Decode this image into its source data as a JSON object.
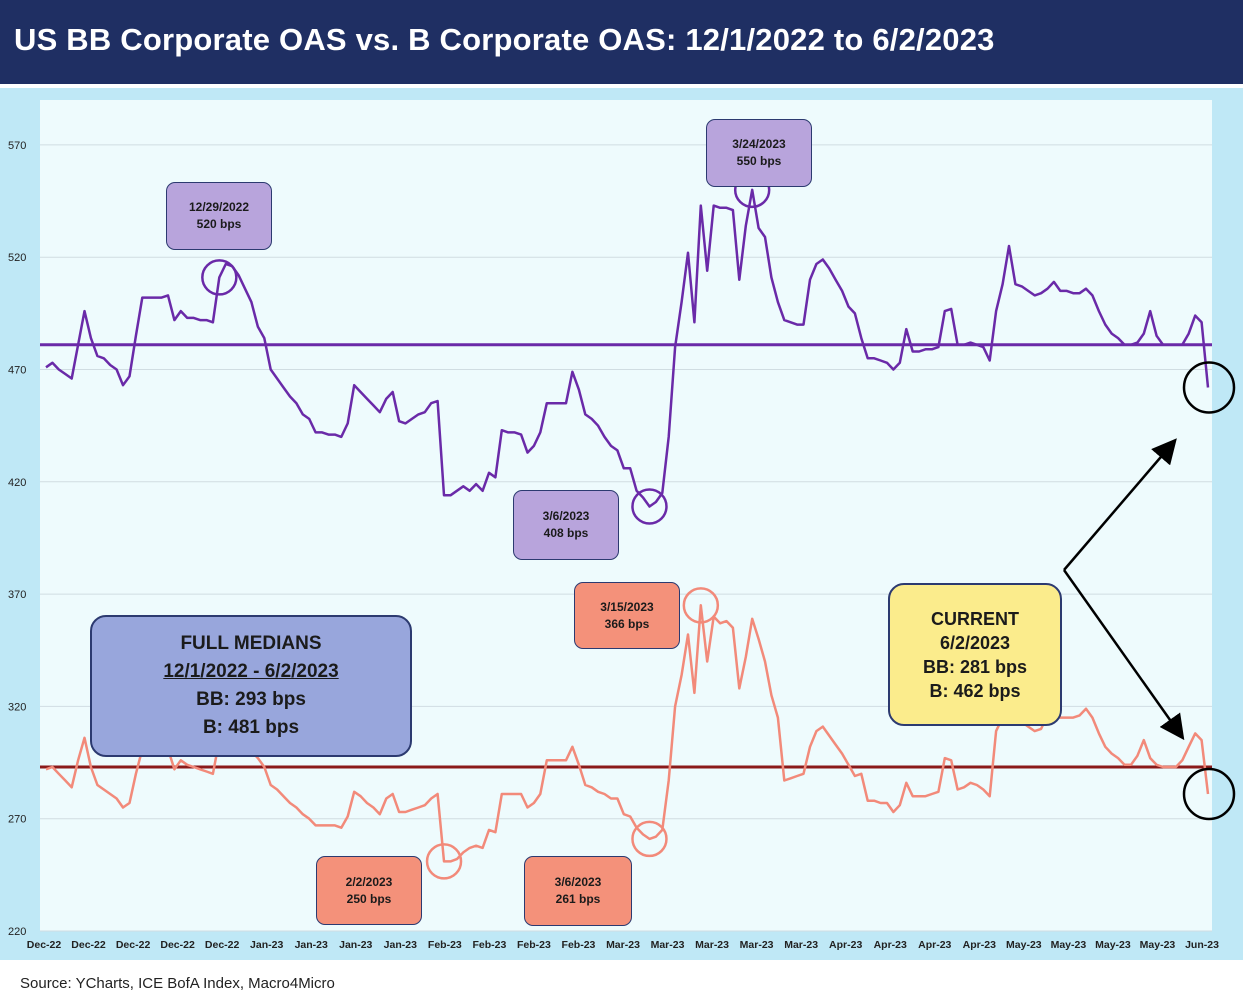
{
  "title": "US BB Corporate OAS vs. B Corporate OAS: 12/1/2022 to 6/2/2023",
  "source": "Source: YCharts, ICE BofA Index, Macro4Micro",
  "chart_data": {
    "type": "line",
    "ylim": [
      220,
      590
    ],
    "yticks": [
      220,
      270,
      320,
      370,
      420,
      470,
      520,
      570
    ],
    "xtick_labels": [
      "Dec-22",
      "Dec-22",
      "Dec-22",
      "Dec-22",
      "Dec-22",
      "Jan-23",
      "Jan-23",
      "Jan-23",
      "Jan-23",
      "Feb-23",
      "Feb-23",
      "Feb-23",
      "Feb-23",
      "Mar-23",
      "Mar-23",
      "Mar-23",
      "Mar-23",
      "Mar-23",
      "Apr-23",
      "Apr-23",
      "Apr-23",
      "Apr-23",
      "May-23",
      "May-23",
      "May-23",
      "May-23",
      "Jun-23"
    ],
    "grid": true,
    "colors": {
      "b_series": "#6a2aa8",
      "bb_series": "#f28a7a",
      "b_median": "#6a2aa8",
      "bb_median": "#8b1a1a",
      "markers_black": "#000000"
    },
    "series": [
      {
        "key": "b",
        "values": [
          471,
          473,
          470,
          468,
          466,
          481,
          496,
          484,
          476,
          475,
          472,
          470,
          463,
          467,
          485,
          502,
          502,
          502,
          502,
          503,
          492,
          496,
          493,
          493,
          492,
          492,
          491,
          511,
          517,
          516,
          512,
          506,
          500,
          489,
          484,
          470,
          466,
          462,
          458,
          455,
          450,
          448,
          442,
          442,
          441,
          441,
          440,
          446,
          463,
          460,
          457,
          454,
          451,
          457,
          460,
          447,
          446,
          448,
          450,
          451,
          455,
          456,
          414,
          414,
          416,
          418,
          416,
          419,
          416,
          424,
          422,
          443,
          442,
          442,
          441,
          433,
          436,
          442,
          455,
          455,
          455,
          455,
          469,
          461,
          450,
          448,
          445,
          440,
          436,
          434,
          426,
          426,
          416,
          413,
          409,
          411,
          415,
          440,
          480,
          500,
          522,
          491,
          543,
          514,
          543,
          542,
          542,
          541,
          510,
          534,
          550,
          533,
          529,
          511,
          500,
          492,
          491,
          490,
          490,
          510,
          517,
          519,
          515,
          510,
          505,
          498,
          495,
          484,
          475,
          475,
          474,
          473,
          470,
          473,
          488,
          478,
          478,
          479,
          479,
          480,
          496,
          497,
          481,
          481,
          482,
          481,
          480,
          474,
          496,
          508,
          525,
          508,
          507,
          505,
          503,
          504,
          506,
          509,
          505,
          505,
          504,
          504,
          506,
          503,
          496,
          490,
          486,
          484,
          481,
          481,
          482,
          486,
          496,
          485,
          481,
          481,
          481,
          481,
          486,
          494,
          491,
          462
        ],
        "median": 481
      },
      {
        "key": "bb",
        "values": [
          292,
          293,
          290,
          287,
          284,
          296,
          306,
          293,
          285,
          283,
          281,
          279,
          275,
          277,
          290,
          301,
          301,
          302,
          302,
          301,
          292,
          296,
          294,
          293,
          292,
          291,
          290,
          305,
          310,
          308,
          306,
          303,
          300,
          297,
          293,
          285,
          283,
          280,
          277,
          275,
          272,
          270,
          267,
          267,
          267,
          267,
          266,
          271,
          282,
          280,
          277,
          275,
          272,
          279,
          281,
          273,
          273,
          274,
          275,
          276,
          279,
          281,
          251,
          251,
          252,
          255,
          257,
          258,
          257,
          265,
          264,
          281,
          281,
          281,
          281,
          275,
          277,
          281,
          296,
          296,
          296,
          296,
          302,
          294,
          285,
          284,
          282,
          281,
          279,
          279,
          272,
          271,
          266,
          263,
          261,
          262,
          265,
          287,
          320,
          334,
          352,
          326,
          365,
          340,
          360,
          357,
          358,
          355,
          328,
          342,
          359,
          350,
          340,
          325,
          315,
          287,
          288,
          289,
          290,
          302,
          309,
          311,
          307,
          303,
          299,
          294,
          289,
          290,
          278,
          278,
          277,
          277,
          273,
          276,
          286,
          280,
          280,
          280,
          281,
          282,
          297,
          296,
          283,
          284,
          286,
          285,
          283,
          280,
          309,
          315,
          334,
          315,
          313,
          311,
          309,
          310,
          316,
          320,
          315,
          315,
          315,
          316,
          319,
          315,
          308,
          302,
          299,
          297,
          294,
          294,
          298,
          305,
          297,
          294,
          293,
          293,
          293,
          296,
          302,
          308,
          305,
          281
        ],
        "median": 293
      }
    ],
    "callouts": [
      {
        "date": "12/29/2022",
        "value_label": "520 bps",
        "series": "b",
        "index": 27
      },
      {
        "date": "3/24/2023",
        "value_label": "550 bps",
        "series": "b",
        "index": 110
      },
      {
        "date": "3/6/2023",
        "value_label": "408 bps",
        "series": "b",
        "index": 94
      },
      {
        "date": "3/15/2023",
        "value_label": "366 bps",
        "series": "bb",
        "index": 102
      },
      {
        "date": "2/2/2023",
        "value_label": "250 bps",
        "series": "bb",
        "index": 62
      },
      {
        "date": "3/6/2023",
        "value_label": "261 bps",
        "series": "bb",
        "index": 94
      }
    ],
    "medians_box": {
      "title": "FULL MEDIANS",
      "period": "12/1/2022 - 6/2/2023",
      "bb": "BB: 293 bps",
      "b": "B: 481 bps"
    },
    "current_box": {
      "title": "CURRENT",
      "date": "6/2/2023",
      "bb": "BB: 281 bps",
      "b": "B: 462 bps"
    }
  }
}
